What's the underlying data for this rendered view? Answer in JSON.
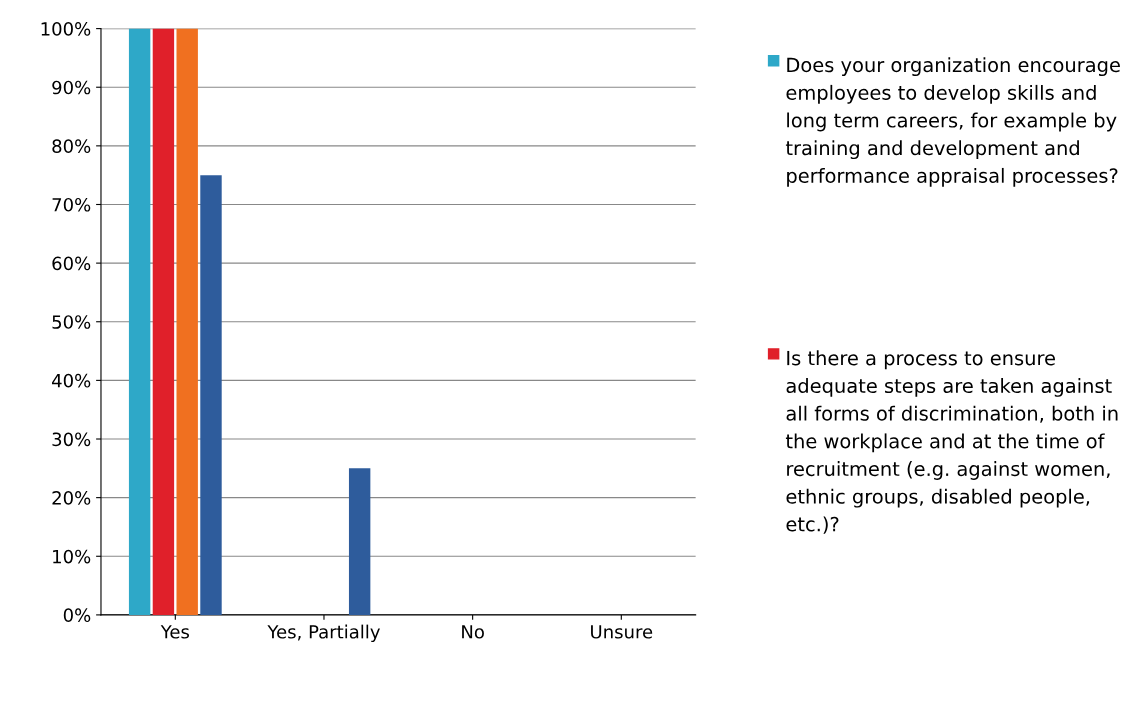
{
  "chart_data": {
    "type": "bar",
    "categories": [
      "Yes",
      "Yes, Partially",
      "No",
      "Unsure"
    ],
    "series": [
      {
        "name": "Does your organization encourage employees to develop skills and long term careers, for example by training and development and performance appraisal processes?",
        "color": "#2ea8c8",
        "values": [
          100,
          0,
          0,
          0
        ]
      },
      {
        "name": "Is there a process to ensure adequate steps are taken against all forms of discrimination, both in the workplace and at the time of recruitment (e.g. against women, ethnic groups, disabled people, etc.)?",
        "color": "#e0202a",
        "values": [
          100,
          0,
          0,
          0
        ]
      },
      {
        "color": "#f07020",
        "values": [
          100,
          0,
          0,
          0
        ]
      },
      {
        "color": "#2e5c9c",
        "values": [
          75,
          25,
          0,
          0
        ]
      }
    ],
    "ylim": [
      0,
      100
    ],
    "yticks": [
      {
        "value": 0,
        "label": "0%"
      },
      {
        "value": 10,
        "label": "10%"
      },
      {
        "value": 20,
        "label": "20%"
      },
      {
        "value": 30,
        "label": "30%"
      },
      {
        "value": 40,
        "label": "40%"
      },
      {
        "value": 50,
        "label": "50%"
      },
      {
        "value": 60,
        "label": "60%"
      },
      {
        "value": 70,
        "label": "70%"
      },
      {
        "value": 80,
        "label": "80%"
      },
      {
        "value": 90,
        "label": "90%"
      },
      {
        "value": 100,
        "label": "100%"
      }
    ],
    "grid": "y",
    "legend": "right"
  }
}
